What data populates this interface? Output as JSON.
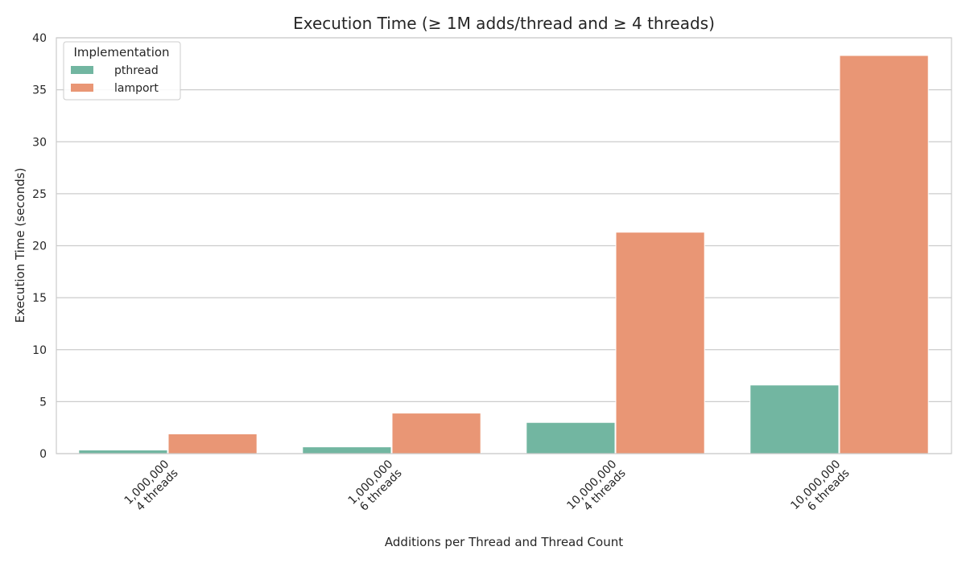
{
  "chart_data": {
    "type": "bar",
    "title": "Execution Time (≥ 1M adds/thread and ≥ 4 threads)",
    "xlabel": "Additions per Thread and Thread Count",
    "ylabel": "Execution Time (seconds)",
    "categories": [
      [
        "1,000,000",
        "4 threads"
      ],
      [
        "1,000,000",
        "6 threads"
      ],
      [
        "10,000,000",
        "4 threads"
      ],
      [
        "10,000,000",
        "6 threads"
      ]
    ],
    "series": [
      {
        "name": "pthread",
        "color": "#72b6a1",
        "values": [
          0.35,
          0.65,
          3.0,
          6.6
        ]
      },
      {
        "name": "lamport",
        "color": "#e99675",
        "values": [
          1.9,
          3.9,
          21.3,
          38.3
        ]
      }
    ],
    "ylim": [
      0,
      40
    ],
    "yticks": [
      "0",
      "5",
      "10",
      "15",
      "20",
      "25",
      "30",
      "35",
      "40"
    ],
    "grid": true,
    "legend": {
      "title": "Implementation",
      "placement": "top-left"
    }
  }
}
